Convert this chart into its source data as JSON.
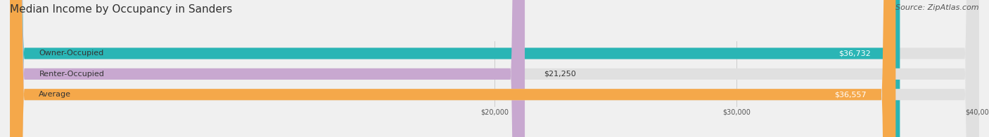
{
  "title": "Median Income by Occupancy in Sanders",
  "source": "Source: ZipAtlas.com",
  "categories": [
    "Owner-Occupied",
    "Renter-Occupied",
    "Average"
  ],
  "values": [
    36732,
    21250,
    36557
  ],
  "bar_colors": [
    "#2ab5b5",
    "#c8a8d0",
    "#f5a84a"
  ],
  "bar_labels": [
    "$36,732",
    "$21,250",
    "$36,557"
  ],
  "xlim": [
    0,
    40000
  ],
  "xticks": [
    20000,
    30000,
    40000
  ],
  "xtick_labels": [
    "$20,000",
    "$30,000",
    "$40,000"
  ],
  "background_color": "#f0f0f0",
  "bar_background_color": "#e0e0e0",
  "title_fontsize": 11,
  "source_fontsize": 8,
  "label_fontsize": 8,
  "bar_height": 0.55,
  "bar_label_color": "#ffffff",
  "category_label_color": "#333333"
}
